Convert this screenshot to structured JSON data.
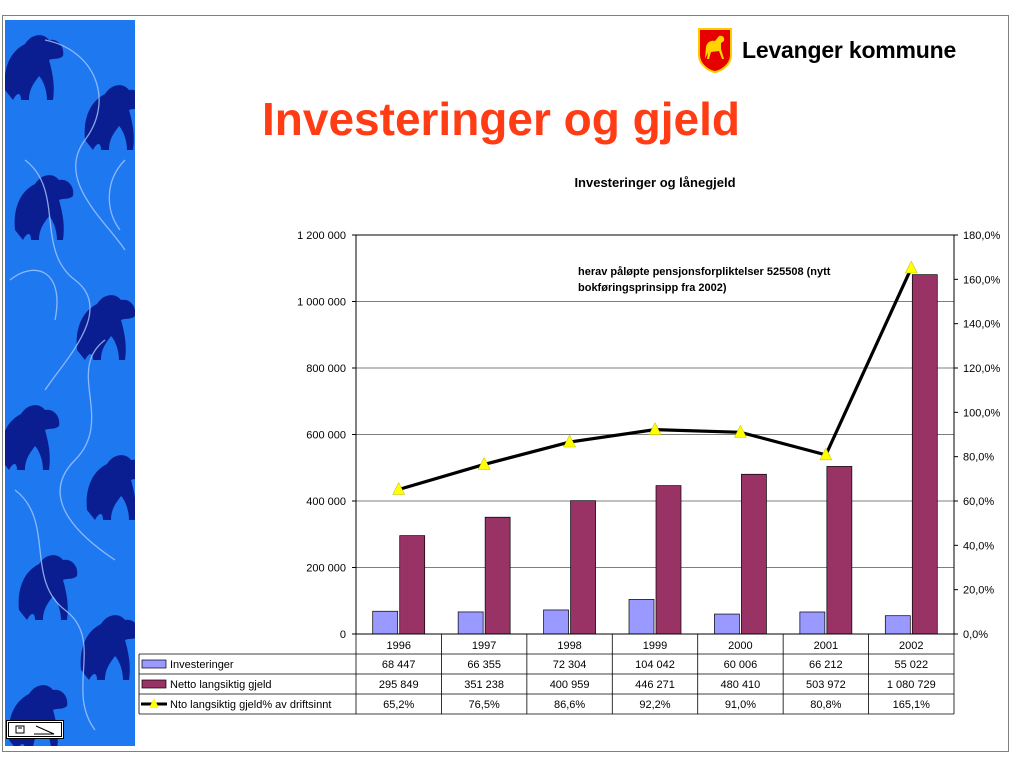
{
  "slide": {
    "title": "Investeringer og gjeld",
    "logo": {
      "text": "Levanger kommune",
      "icon": "horse-shield-icon"
    },
    "footer_icon": "slide-show-icon"
  },
  "colors": {
    "title": "#ff3c14",
    "investeringer": "#9999ff",
    "gjeld": "#993366",
    "line": "#000000",
    "marker": "#ffff00",
    "band": "#1e78f0"
  },
  "chart_data": {
    "type": "bar",
    "title": "Investeringer og lånegjeld",
    "categories": [
      "1996",
      "1997",
      "1998",
      "1999",
      "2000",
      "2001",
      "2002"
    ],
    "series": [
      {
        "name": "Investeringer",
        "type": "bar",
        "axis": "left",
        "values": [
          68447,
          66355,
          72304,
          104042,
          60006,
          66212,
          55022
        ],
        "labels": [
          "68 447",
          "66 355",
          "72 304",
          "104 042",
          "60 006",
          "66 212",
          "55 022"
        ]
      },
      {
        "name": "Netto langsiktig gjeld",
        "type": "bar",
        "axis": "left",
        "values": [
          295849,
          351238,
          400959,
          446271,
          480410,
          503972,
          1080729
        ],
        "labels": [
          "295 849",
          "351 238",
          "400 959",
          "446 271",
          "480 410",
          "503 972",
          "1 080 729"
        ]
      },
      {
        "name": "Nto langsiktig gjeld% av driftsinnt",
        "type": "line",
        "axis": "right",
        "values": [
          65.2,
          76.5,
          86.6,
          92.2,
          91.0,
          80.8,
          165.1
        ],
        "labels": [
          "65,2%",
          "76,5%",
          "86,6%",
          "92,2%",
          "91,0%",
          "80,8%",
          "165,1%"
        ]
      }
    ],
    "ylim": [
      0,
      1200000
    ],
    "y_ticks": [
      0,
      200000,
      400000,
      600000,
      800000,
      1000000,
      1200000
    ],
    "y_tick_labels": [
      "0",
      "200 000",
      "400 000",
      "600 000",
      "800 000",
      "1 000 000",
      "1 200 000"
    ],
    "y2lim": [
      0,
      180
    ],
    "y2_ticks": [
      0,
      20,
      40,
      60,
      80,
      100,
      120,
      140,
      160,
      180
    ],
    "y2_tick_labels": [
      "0,0%",
      "20,0%",
      "40,0%",
      "60,0%",
      "80,0%",
      "100,0%",
      "120,0%",
      "140,0%",
      "160,0%",
      "180,0%"
    ],
    "grid": true,
    "legend": "data-table",
    "annotation": [
      "herav påløpte pensjonsforpliktelser 525508 (nytt",
      "bokføringsprinsipp fra 2002)"
    ]
  }
}
